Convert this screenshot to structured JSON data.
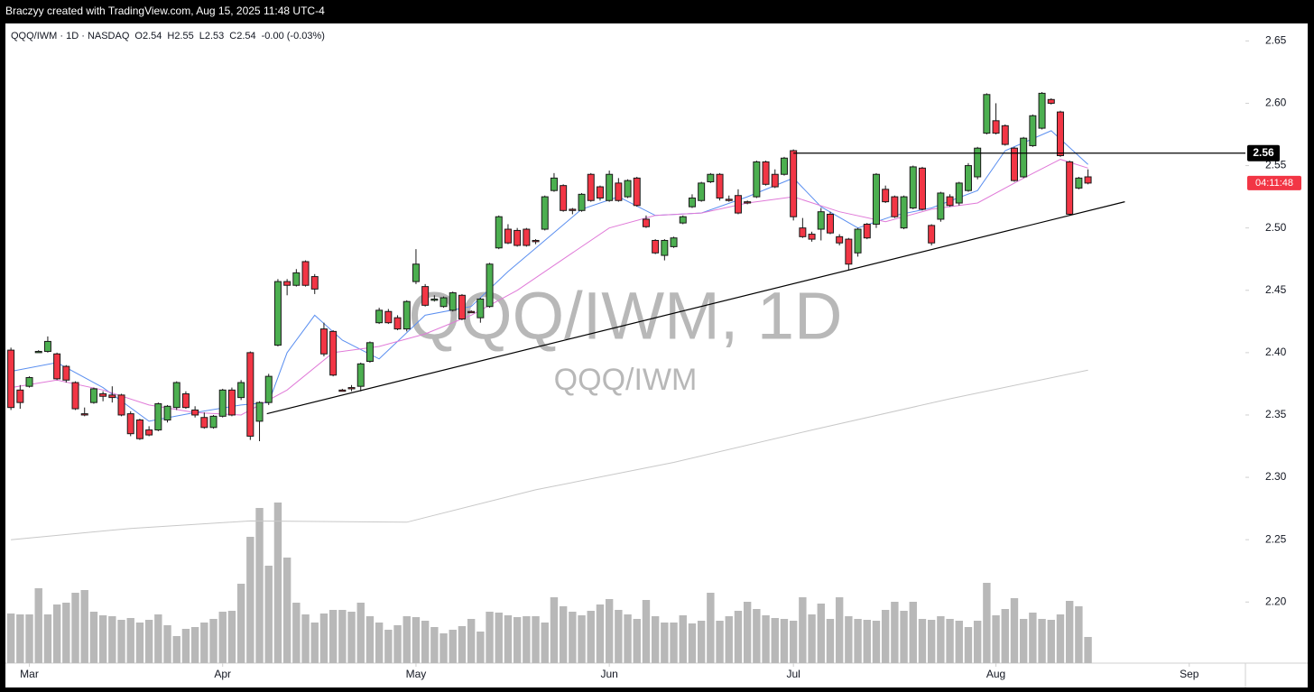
{
  "header": "Braczyy created with TradingView.com, Aug 15, 2025 11:48 UTC-4",
  "chart_data": {
    "type": "candlestick",
    "legend": [
      "QQQ/IWM · 1D · NASDAQ",
      "O2.54",
      "H2.55",
      "L2.53",
      "C2.54",
      "-0.00 (-0.03%)"
    ],
    "watermark": [
      "QQQ/IWM, 1D",
      "QQQ/IWM"
    ],
    "countdown": "04:11:48",
    "up_color": "#4caf50",
    "down_color": "#f23645",
    "volume_color": "#b8b8b8",
    "countdown_color": "#f23645",
    "xlim": [
      -0.6,
      134.1
    ],
    "xticks": [
      {
        "value": 2,
        "label": "Mar"
      },
      {
        "value": 23,
        "label": "Apr"
      },
      {
        "value": 44,
        "label": "May"
      },
      {
        "value": 65,
        "label": "Jun"
      },
      {
        "value": 85,
        "label": "Jul"
      },
      {
        "value": 107,
        "label": "Aug"
      },
      {
        "value": 128,
        "label": "Sep"
      }
    ],
    "ylim": [
      2.151,
      2.664
    ],
    "yticks": [
      {
        "value": 2.2,
        "label": "2.20"
      },
      2.25,
      {
        "value": 2.3,
        "label": "2.30"
      },
      2.35,
      {
        "value": 2.4,
        "label": "2.40"
      },
      2.45,
      {
        "value": 2.5,
        "label": "2.50"
      },
      2.55,
      {
        "value": 2.6,
        "label": "2.60"
      },
      2.65
    ],
    "open": [
      2.402,
      2.37,
      2.373,
      2.4,
      2.401,
      2.399,
      2.389,
      2.376,
      2.351,
      2.36,
      2.367,
      2.366,
      2.366,
      2.351,
      2.346,
      2.338,
      2.338,
      2.346,
      2.356,
      2.367,
      2.354,
      2.348,
      2.34,
      2.349,
      2.37,
      2.364,
      2.4,
      2.345,
      2.36,
      2.406,
      2.457,
      2.454,
      2.473,
      2.461,
      2.419,
      2.417,
      2.37,
      2.372,
      2.373,
      2.393,
      2.424,
      2.433,
      2.428,
      2.419,
      2.457,
      2.453,
      2.442,
      2.437,
      2.434,
      2.446,
      2.433,
      2.428,
      2.437,
      2.484,
      2.499,
      2.498,
      2.499,
      2.49,
      2.499,
      2.53,
      2.534,
      2.515,
      2.514,
      2.543,
      2.533,
      2.522,
      2.536,
      2.525,
      2.54,
      2.507,
      2.49,
      2.478,
      2.485,
      2.504,
      2.517,
      2.522,
      2.537,
      2.543,
      2.523,
      2.526,
      2.521,
      2.525,
      2.553,
      2.543,
      2.543,
      2.562,
      2.5,
      2.495,
      2.499,
      2.511,
      2.493,
      2.491,
      2.48,
      2.503,
      2.503,
      2.531,
      2.525,
      2.5,
      2.516,
      2.548,
      2.502,
      2.507,
      2.525,
      2.52,
      2.53,
      2.541,
      2.576,
      2.586,
      2.582,
      2.564,
      2.541,
      2.566,
      2.58,
      2.603,
      2.593,
      2.553,
      2.532,
      2.541
    ],
    "high": [
      2.404,
      2.374,
      2.381,
      2.402,
      2.413,
      2.4,
      2.39,
      2.377,
      2.356,
      2.372,
      2.369,
      2.373,
      2.367,
      2.353,
      2.347,
      2.341,
      2.36,
      2.358,
      2.377,
      2.369,
      2.357,
      2.352,
      2.35,
      2.371,
      2.372,
      2.378,
      2.401,
      2.361,
      2.383,
      2.459,
      2.459,
      2.467,
      2.474,
      2.463,
      2.424,
      2.418,
      2.371,
      2.374,
      2.392,
      2.409,
      2.436,
      2.435,
      2.43,
      2.442,
      2.483,
      2.455,
      2.446,
      2.445,
      2.449,
      2.447,
      2.434,
      2.444,
      2.472,
      2.51,
      2.503,
      2.5,
      2.5,
      2.491,
      2.526,
      2.544,
      2.535,
      2.516,
      2.528,
      2.544,
      2.534,
      2.546,
      2.54,
      2.539,
      2.541,
      2.51,
      2.491,
      2.491,
      2.493,
      2.51,
      2.527,
      2.537,
      2.544,
      2.544,
      2.526,
      2.531,
      2.522,
      2.554,
      2.554,
      2.547,
      2.557,
      2.563,
      2.508,
      2.497,
      2.516,
      2.513,
      2.495,
      2.492,
      2.5,
      2.504,
      2.544,
      2.534,
      2.526,
      2.526,
      2.55,
      2.549,
      2.503,
      2.529,
      2.527,
      2.537,
      2.552,
      2.565,
      2.608,
      2.6,
      2.583,
      2.565,
      2.573,
      2.591,
      2.609,
      2.604,
      2.594,
      2.554,
      2.541,
      2.547
    ],
    "low": [
      2.354,
      2.355,
      2.372,
      2.4,
      2.4,
      2.378,
      2.376,
      2.354,
      2.349,
      2.359,
      2.361,
      2.36,
      2.349,
      2.333,
      2.33,
      2.333,
      2.337,
      2.344,
      2.354,
      2.355,
      2.348,
      2.339,
      2.339,
      2.348,
      2.349,
      2.362,
      2.33,
      2.329,
      2.358,
      2.405,
      2.446,
      2.453,
      2.453,
      2.447,
      2.397,
      2.381,
      2.369,
      2.369,
      2.369,
      2.392,
      2.423,
      2.423,
      2.418,
      2.417,
      2.455,
      2.437,
      2.441,
      2.436,
      2.433,
      2.426,
      2.432,
      2.424,
      2.436,
      2.483,
      2.487,
      2.485,
      2.485,
      2.487,
      2.498,
      2.529,
      2.513,
      2.511,
      2.513,
      2.521,
      2.522,
      2.521,
      2.521,
      2.524,
      2.517,
      2.5,
      2.479,
      2.474,
      2.484,
      2.503,
      2.516,
      2.521,
      2.536,
      2.522,
      2.521,
      2.511,
      2.519,
      2.524,
      2.534,
      2.532,
      2.542,
      2.506,
      2.492,
      2.489,
      2.49,
      2.495,
      2.486,
      2.466,
      2.477,
      2.491,
      2.5,
      2.52,
      2.508,
      2.499,
      2.515,
      2.514,
      2.486,
      2.505,
      2.517,
      2.518,
      2.529,
      2.539,
      2.575,
      2.575,
      2.566,
      2.537,
      2.54,
      2.565,
      2.579,
      2.599,
      2.557,
      2.51,
      2.531,
      2.535
    ],
    "close": [
      2.356,
      2.36,
      2.38,
      2.401,
      2.409,
      2.379,
      2.378,
      2.355,
      2.35,
      2.371,
      2.365,
      2.364,
      2.35,
      2.335,
      2.331,
      2.334,
      2.359,
      2.357,
      2.376,
      2.356,
      2.35,
      2.34,
      2.349,
      2.37,
      2.35,
      2.376,
      2.333,
      2.36,
      2.381,
      2.457,
      2.454,
      2.464,
      2.454,
      2.451,
      2.399,
      2.382,
      2.369,
      2.371,
      2.391,
      2.408,
      2.434,
      2.424,
      2.419,
      2.441,
      2.471,
      2.438,
      2.443,
      2.444,
      2.448,
      2.427,
      2.432,
      2.443,
      2.471,
      2.509,
      2.488,
      2.486,
      2.486,
      2.489,
      2.525,
      2.54,
      2.514,
      2.514,
      2.527,
      2.522,
      2.524,
      2.543,
      2.522,
      2.538,
      2.518,
      2.501,
      2.48,
      2.49,
      2.492,
      2.509,
      2.524,
      2.536,
      2.543,
      2.524,
      2.522,
      2.512,
      2.52,
      2.553,
      2.535,
      2.533,
      2.556,
      2.509,
      2.493,
      2.491,
      2.513,
      2.496,
      2.488,
      2.471,
      2.499,
      2.492,
      2.543,
      2.521,
      2.509,
      2.525,
      2.549,
      2.515,
      2.488,
      2.528,
      2.518,
      2.536,
      2.55,
      2.564,
      2.607,
      2.576,
      2.567,
      2.538,
      2.572,
      2.59,
      2.608,
      2.6,
      2.558,
      2.511,
      2.54,
      2.536
    ],
    "volume": [
      55,
      54,
      54,
      83,
      54,
      65,
      67,
      78,
      81,
      57,
      53,
      52,
      48,
      50,
      45,
      48,
      54,
      42,
      30,
      38,
      40,
      45,
      49,
      57,
      58,
      88,
      140,
      172,
      108,
      178,
      117,
      67,
      54,
      45,
      55,
      59,
      59,
      57,
      67,
      52,
      45,
      37,
      42,
      52,
      51,
      47,
      40,
      33,
      37,
      41,
      49,
      35,
      57,
      56,
      53,
      51,
      52,
      52,
      45,
      73,
      63,
      57,
      53,
      58,
      65,
      71,
      59,
      54,
      49,
      70,
      52,
      45,
      45,
      53,
      44,
      47,
      78,
      47,
      52,
      58,
      68,
      60,
      53,
      50,
      49,
      47,
      73,
      54,
      66,
      49,
      73,
      52,
      49,
      48,
      47,
      59,
      68,
      58,
      68,
      49,
      48,
      52,
      49,
      47,
      40,
      47,
      89,
      53,
      60,
      72,
      49,
      56,
      49,
      48,
      54,
      69,
      63,
      29
    ],
    "series": [
      {
        "name": "fast-ma",
        "color": "#5b8ff0",
        "x": [
          0,
          5,
          10,
          15,
          20,
          25,
          28,
          30,
          33,
          36,
          40,
          45,
          50,
          54,
          58,
          62,
          66,
          70,
          75,
          80,
          85,
          88,
          92,
          96,
          100,
          105,
          108,
          113,
          117
        ],
        "values": [
          2.385,
          2.392,
          2.372,
          2.345,
          2.352,
          2.358,
          2.36,
          2.4,
          2.43,
          2.41,
          2.395,
          2.43,
          2.437,
          2.465,
          2.49,
          2.515,
          2.525,
          2.51,
          2.512,
          2.525,
          2.54,
          2.517,
          2.5,
          2.51,
          2.516,
          2.53,
          2.562,
          2.578,
          2.551
        ]
      },
      {
        "name": "slow-ma",
        "color": "#e07ad8",
        "x": [
          0,
          5,
          10,
          15,
          20,
          25,
          30,
          35,
          40,
          45,
          50,
          55,
          60,
          65,
          70,
          75,
          80,
          85,
          90,
          95,
          100,
          105,
          110,
          114,
          117
        ],
        "values": [
          2.372,
          2.378,
          2.37,
          2.358,
          2.352,
          2.35,
          2.37,
          2.4,
          2.405,
          2.415,
          2.43,
          2.45,
          2.475,
          2.5,
          2.51,
          2.512,
          2.52,
          2.525,
          2.513,
          2.505,
          2.515,
          2.52,
          2.54,
          2.555,
          2.548
        ]
      },
      {
        "name": "long-ma",
        "color": "#c8c8c8",
        "x": [
          0,
          13,
          26,
          43,
          57,
          72,
          87,
          102,
          117
        ],
        "values": [
          2.25,
          2.259,
          2.265,
          2.264,
          2.29,
          2.312,
          2.338,
          2.363,
          2.386
        ]
      }
    ],
    "drawings": [
      {
        "x": [
          85,
          134.1
        ],
        "values": [
          2.56,
          2.56
        ],
        "color": "#000000"
      },
      {
        "x": [
          27.8,
          121
        ],
        "values": [
          2.351,
          2.521
        ],
        "color": "#000000"
      }
    ]
  }
}
